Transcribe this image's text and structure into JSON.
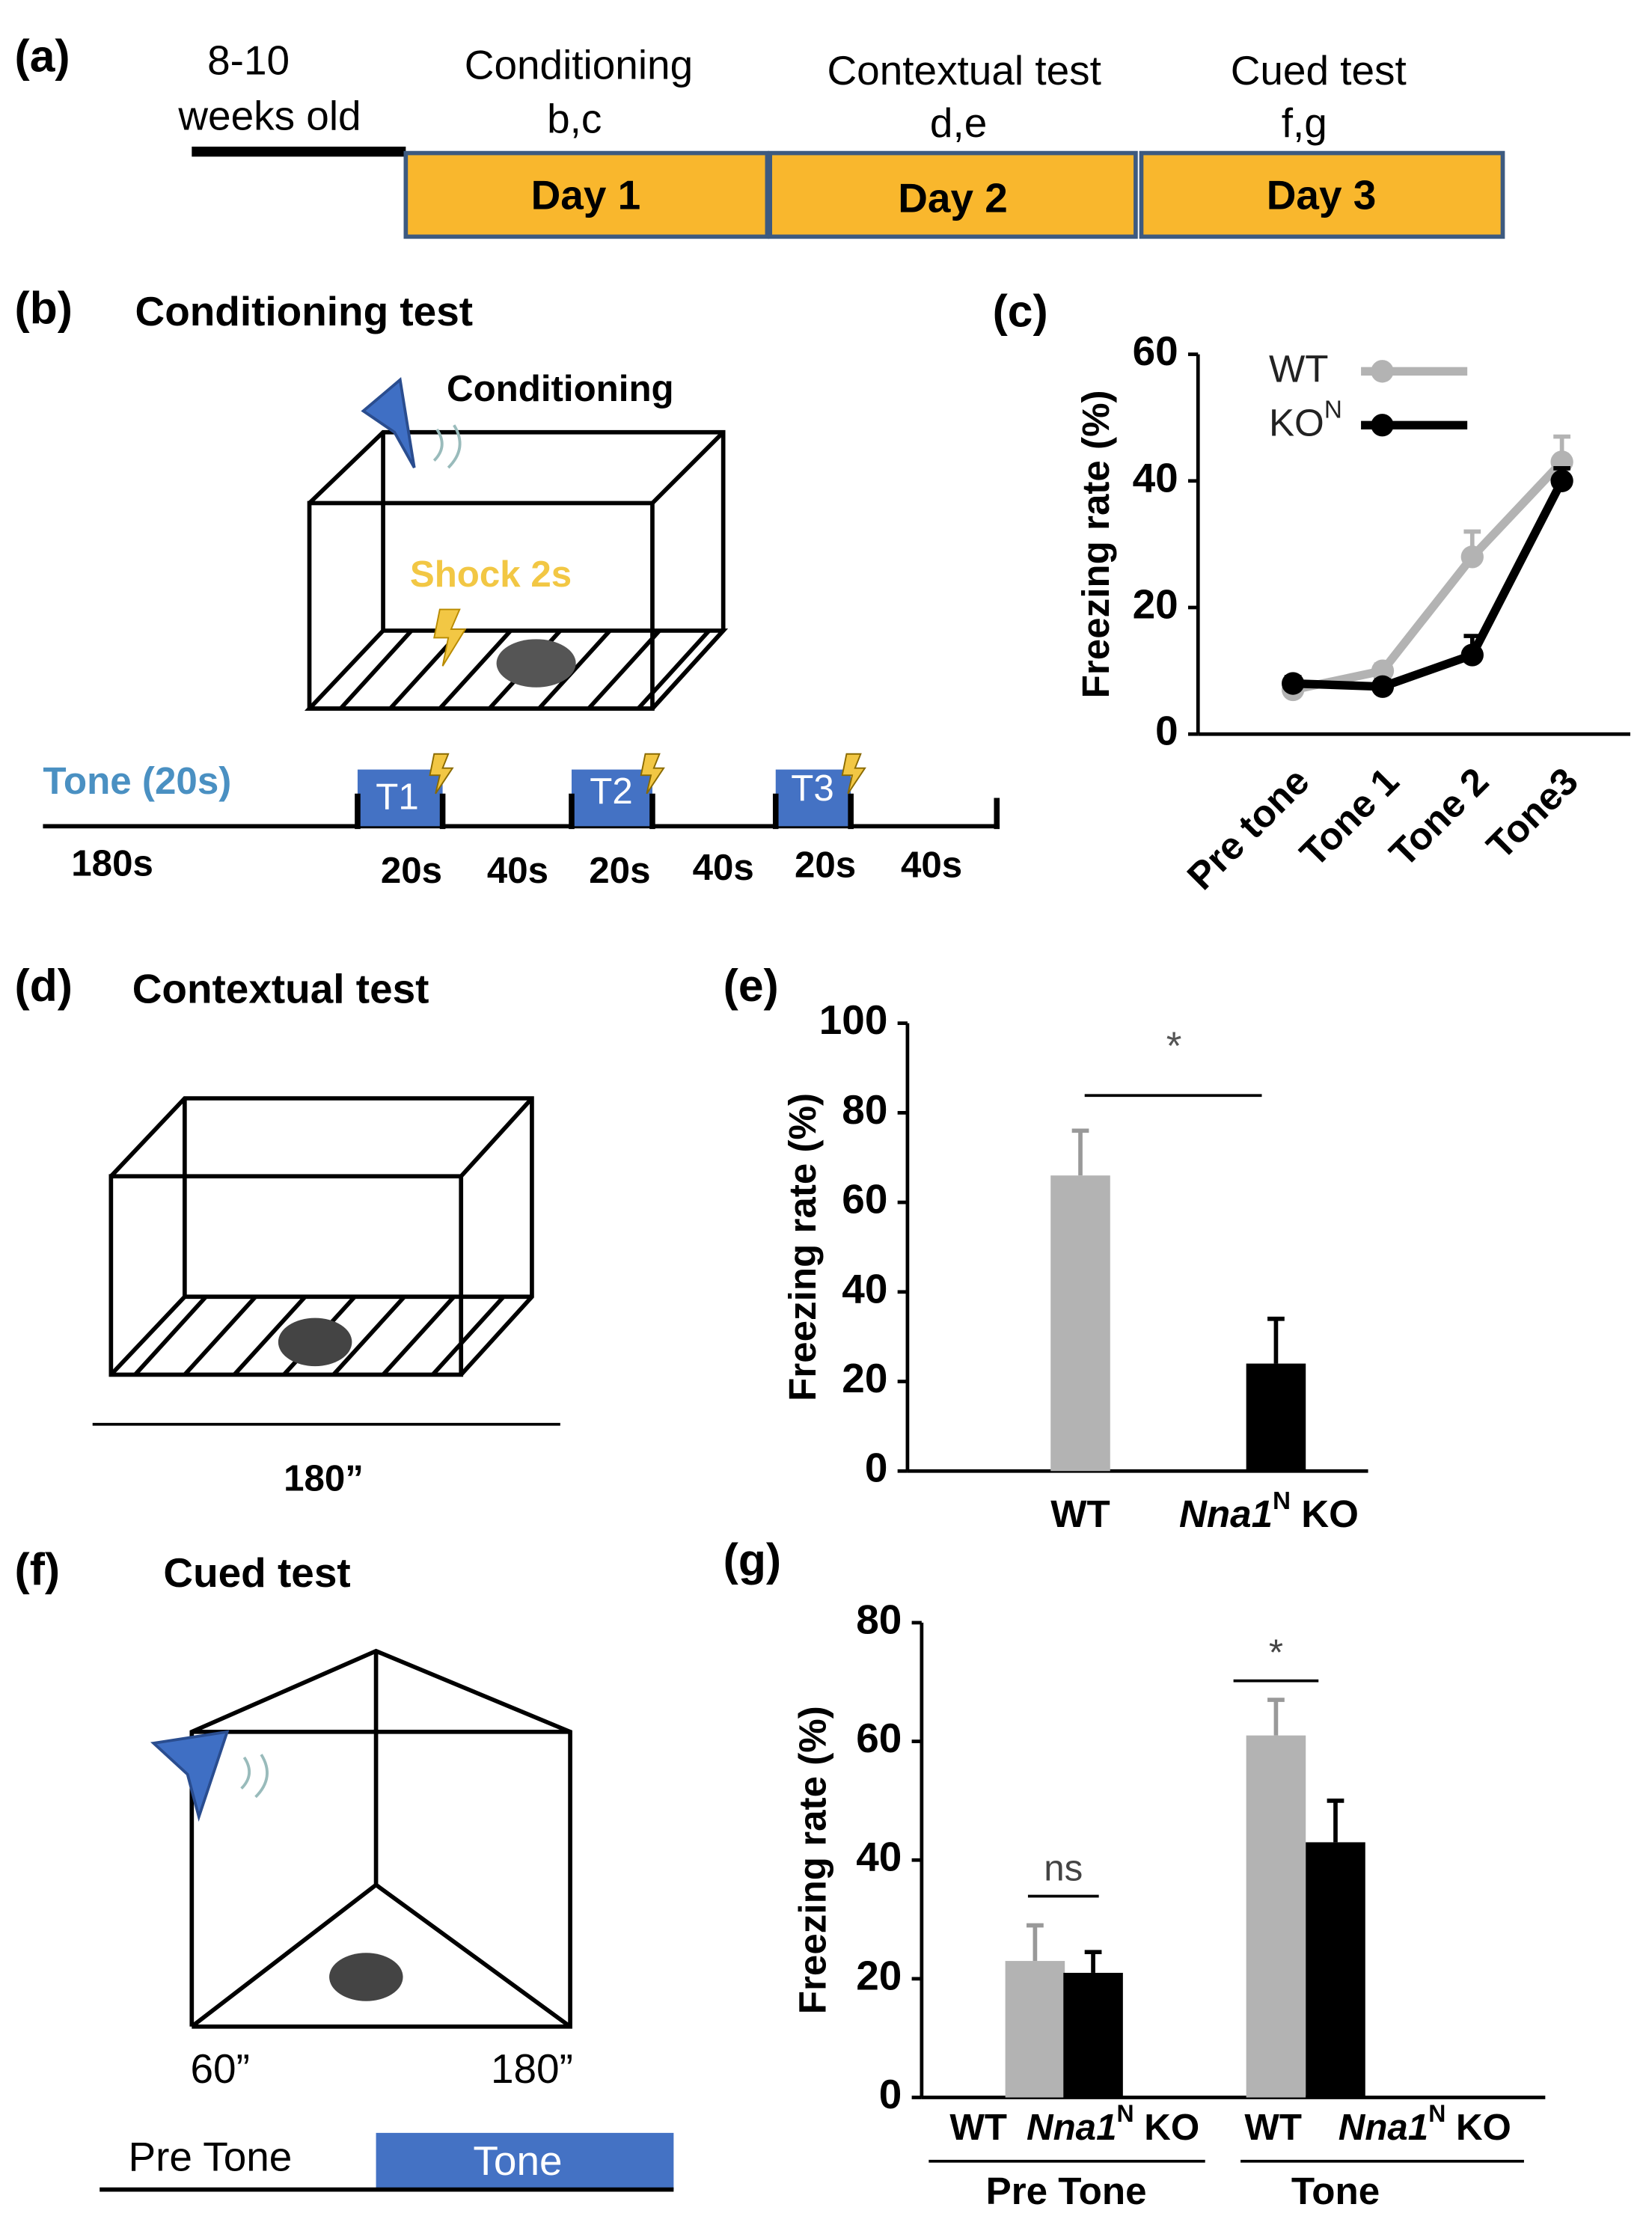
{
  "panel_a": {
    "label": "(a)",
    "age": [
      "8-10",
      "weeks old"
    ],
    "stages": [
      {
        "name": "Conditioning",
        "panels": "b,c",
        "day": "Day 1"
      },
      {
        "name": "Contextual test",
        "panels": "d,e",
        "day": "Day 2"
      },
      {
        "name": "Cued test",
        "panels": "f,g",
        "day": "Day 3"
      }
    ]
  },
  "panel_b": {
    "label": "(b)",
    "title": "Conditioning test",
    "chamber": "Conditioning",
    "shock": "Shock 2s",
    "tone": "Tone (20s)",
    "tones": [
      "T1",
      "T2",
      "T3"
    ],
    "durations": [
      "180s",
      "20s",
      "40s",
      "20s",
      "40s",
      "20s",
      "40s"
    ]
  },
  "panel_d": {
    "label": "(d)",
    "title": "Contextual test",
    "duration": "180”"
  },
  "panel_f": {
    "label": "(f)",
    "title": "Cued test",
    "times": [
      "60”",
      "180”"
    ],
    "phases": [
      "Pre Tone",
      "Tone"
    ]
  },
  "chart_data": [
    {
      "type": "line",
      "label": "(c)",
      "y_label": "Freezing rate (%)",
      "categories": [
        "Pre tone",
        "Tone 1",
        "Tone 2",
        "Tone3"
      ],
      "series": [
        {
          "name": [
            {
              "text": "WT"
            }
          ],
          "color": "#b3b3b3",
          "values": [
            7,
            10,
            28,
            43
          ],
          "errors": [
            2,
            1,
            4,
            4
          ]
        },
        {
          "name": [
            {
              "text": "KO"
            },
            {
              "text": "N",
              "style": "sup"
            }
          ],
          "color": "#000000",
          "values": [
            8,
            7.5,
            12.5,
            40
          ],
          "errors": [
            1,
            1,
            3,
            2
          ]
        }
      ],
      "ylim": [
        0,
        60
      ],
      "yticks": [
        0,
        20,
        40,
        60
      ],
      "legend": "upper left"
    },
    {
      "type": "bar",
      "label": "(e)",
      "y_label": "Freezing rate (%)",
      "categories": [
        [
          {
            "text": "WT"
          }
        ],
        [
          {
            "text": "Nna1",
            "style": "italic"
          },
          {
            "text": "N",
            "style": "sup"
          },
          {
            "text": " KO"
          }
        ]
      ],
      "values": [
        66,
        24
      ],
      "errors": [
        10,
        10
      ],
      "colors": [
        "#b3b3b3",
        "#000000"
      ],
      "ylim": [
        0,
        100
      ],
      "yticks": [
        0,
        20,
        40,
        60,
        80,
        100
      ],
      "annotation": "*"
    },
    {
      "type": "grouped_bar",
      "label": "(g)",
      "y_label": "Freezing rate (%)",
      "categories": [
        "Pre Tone",
        "Tone"
      ],
      "series": [
        {
          "name": [
            {
              "text": "WT"
            }
          ],
          "color": "#b3b3b3",
          "values": [
            23,
            61
          ],
          "errors": [
            6,
            6
          ]
        },
        {
          "name": [
            {
              "text": "Nna1",
              "style": "italic"
            },
            {
              "text": "N",
              "style": "sup"
            },
            {
              "text": " KO"
            }
          ],
          "color": "#000000",
          "values": [
            21,
            43
          ],
          "errors": [
            3.5,
            7
          ]
        }
      ],
      "ylim": [
        0,
        80
      ],
      "yticks": [
        0,
        20,
        40,
        60,
        80
      ],
      "annotations": [
        "ns",
        "*"
      ]
    }
  ]
}
